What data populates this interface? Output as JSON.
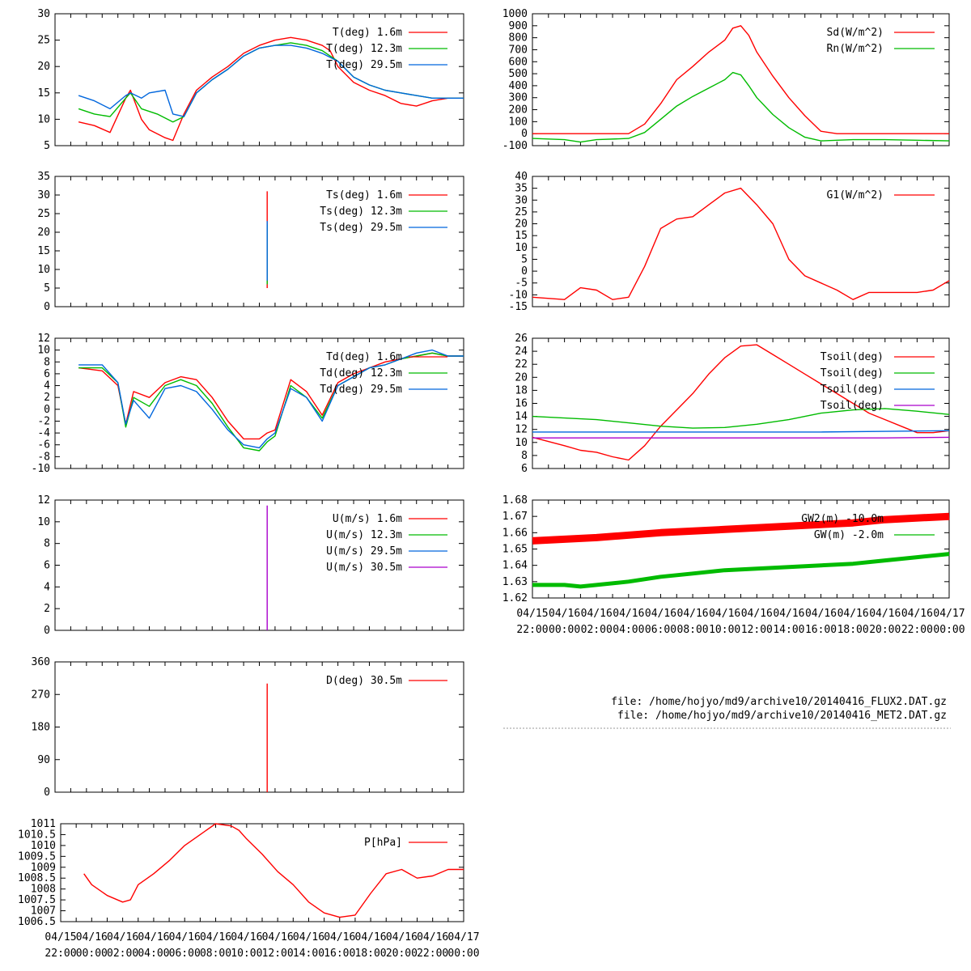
{
  "files": {
    "line1": "file: /home/hojyo/md9/archive10/20140416_FLUX2.DAT.gz",
    "line2": "file: /home/hojyo/md9/archive10/20140416_MET2.DAT.gz"
  },
  "time_axis": {
    "ticks_top": [
      "04/15",
      "04/16",
      "04/16",
      "04/16",
      "04/16",
      "04/16",
      "04/16",
      "04/16",
      "04/16",
      "04/16",
      "04/16",
      "04/16",
      "04/16",
      "04/17"
    ],
    "ticks_bottom": [
      "22:00",
      "00:00",
      "02:00",
      "04:00",
      "06:00",
      "08:00",
      "10:00",
      "12:00",
      "14:00",
      "16:00",
      "18:00",
      "20:00",
      "22:00",
      "00:00"
    ],
    "hours": [
      -2,
      0,
      2,
      4,
      6,
      8,
      10,
      12,
      14,
      16,
      18,
      20,
      22,
      24
    ]
  },
  "colors": {
    "red": "#ff0000",
    "green": "#00bb00",
    "blue": "#0066dd",
    "purple": "#aa00cc"
  },
  "chart_data": [
    {
      "id": "T",
      "type": "line",
      "ylim": [
        5,
        30
      ],
      "yticks": [
        "5",
        "10",
        "15",
        "20",
        "25",
        "30"
      ],
      "series": [
        {
          "name": "T(deg)  1.6m",
          "color": "red",
          "x": [
            -0.5,
            0.5,
            1.5,
            2.5,
            2.8,
            3.5,
            4.0,
            5.0,
            5.5,
            6.2,
            7.0,
            8.0,
            9.0,
            10.0,
            11.0,
            12.0,
            13.0,
            14.0,
            15.0,
            15.5,
            16.0,
            17.0,
            18.0,
            19.0,
            20.0,
            21.0,
            22.0,
            23.0,
            24.0
          ],
          "y": [
            9.5,
            8.8,
            7.5,
            14.0,
            15.5,
            10.0,
            8.0,
            6.5,
            6.0,
            11.0,
            15.5,
            18.0,
            20.0,
            22.5,
            24.0,
            25.0,
            25.5,
            25.0,
            24.0,
            23.0,
            20.0,
            17.0,
            15.5,
            14.5,
            13.0,
            12.5,
            13.5,
            14.0,
            14.0
          ]
        },
        {
          "name": "T(deg) 12.3m",
          "color": "green",
          "x": [
            -0.5,
            0.5,
            1.5,
            2.5,
            2.8,
            3.5,
            4.5,
            5.5,
            6.2,
            7.0,
            8.0,
            9.0,
            10.0,
            11.0,
            12.0,
            13.0,
            14.0,
            15.0,
            16.0,
            17.0,
            18.0,
            19.0,
            20.0,
            21.0,
            22.0,
            23.0,
            24.0
          ],
          "y": [
            12.0,
            11.0,
            10.5,
            14.0,
            15.0,
            12.0,
            11.0,
            9.5,
            10.5,
            15.0,
            17.5,
            19.5,
            22.0,
            23.5,
            24.0,
            24.5,
            24.0,
            23.0,
            21.0,
            18.0,
            16.5,
            15.5,
            15.0,
            14.5,
            14.0,
            14.0,
            14.0
          ]
        },
        {
          "name": "T(deg) 29.5m",
          "color": "blue",
          "x": [
            -0.5,
            0.5,
            1.5,
            2.5,
            2.8,
            3.5,
            4.0,
            5.0,
            5.5,
            6.2,
            7.0,
            8.0,
            9.0,
            10.0,
            11.0,
            12.0,
            13.0,
            14.0,
            15.0,
            16.0,
            17.0,
            18.0,
            19.0,
            20.0,
            21.0,
            22.0,
            23.0,
            24.0
          ],
          "y": [
            14.5,
            13.5,
            12.0,
            14.5,
            15.0,
            14.0,
            15.0,
            15.5,
            11.0,
            10.5,
            15.0,
            17.5,
            19.5,
            22.0,
            23.5,
            24.0,
            24.0,
            23.5,
            22.5,
            21.0,
            18.0,
            16.5,
            15.5,
            15.0,
            14.5,
            14.0,
            14.0,
            14.0
          ]
        }
      ]
    },
    {
      "id": "Ts",
      "type": "line",
      "ylim": [
        0,
        35
      ],
      "yticks": [
        "0",
        "5",
        "10",
        "15",
        "20",
        "25",
        "30",
        "35"
      ],
      "series": [
        {
          "name": "Ts(deg)  1.6m",
          "color": "red",
          "x": [
            11.5,
            11.5
          ],
          "y": [
            5,
            31
          ]
        },
        {
          "name": "Ts(deg) 12.3m",
          "color": "green",
          "x": [
            11.5,
            11.5
          ],
          "y": [
            6,
            22
          ]
        },
        {
          "name": "Ts(deg) 29.5m",
          "color": "blue",
          "x": [
            11.5,
            11.5
          ],
          "y": [
            7,
            23
          ]
        }
      ]
    },
    {
      "id": "Td",
      "type": "line",
      "ylim": [
        -10,
        12
      ],
      "yticks": [
        "-10",
        "-8",
        "-6",
        "-4",
        "-2",
        "0",
        "2",
        "4",
        "6",
        "8",
        "10",
        "12"
      ],
      "series": [
        {
          "name": "Td(deg)  1.6m",
          "color": "red",
          "x": [
            -0.5,
            1.0,
            2.0,
            2.5,
            3.0,
            4.0,
            5.0,
            6.0,
            7.0,
            8.0,
            9.0,
            10.0,
            11.0,
            11.5,
            12.0,
            13.0,
            14.0,
            15.0,
            16.0,
            17.0,
            18.0,
            19.0,
            20.0,
            21.0,
            22.0,
            23.0,
            24.0
          ],
          "y": [
            7.0,
            6.5,
            4.0,
            -2.5,
            3.0,
            2.0,
            4.5,
            5.5,
            5.0,
            2.0,
            -2.0,
            -5.0,
            -5.0,
            -4.0,
            -3.5,
            5.0,
            3.0,
            -1.0,
            4.5,
            6.0,
            7.0,
            8.0,
            8.5,
            9.0,
            9.5,
            9.0,
            9.0
          ]
        },
        {
          "name": "Td(deg) 12.3m",
          "color": "green",
          "x": [
            -0.5,
            1.0,
            2.0,
            2.5,
            3.0,
            4.0,
            5.0,
            6.0,
            7.0,
            8.0,
            9.0,
            10.0,
            11.0,
            11.5,
            12.0,
            13.0,
            14.0,
            15.0,
            16.0,
            17.0,
            18.0,
            19.0,
            20.0,
            21.0,
            22.0,
            23.0,
            24.0
          ],
          "y": [
            7.0,
            7.0,
            4.5,
            -3.0,
            2.0,
            0.5,
            4.0,
            5.0,
            4.0,
            1.0,
            -3.0,
            -6.5,
            -7.0,
            -5.5,
            -4.5,
            4.0,
            2.0,
            -1.5,
            4.0,
            5.5,
            7.0,
            7.5,
            8.5,
            9.0,
            9.5,
            9.0,
            9.0
          ]
        },
        {
          "name": "Td(deg) 29.5m",
          "color": "blue",
          "x": [
            -0.5,
            1.0,
            2.0,
            2.5,
            3.0,
            4.0,
            5.0,
            6.0,
            7.0,
            8.0,
            9.0,
            10.0,
            11.0,
            11.5,
            12.0,
            13.0,
            14.0,
            15.0,
            16.0,
            17.0,
            18.0,
            19.0,
            20.0,
            21.0,
            22.0,
            23.0,
            24.0
          ],
          "y": [
            7.5,
            7.5,
            4.5,
            -2.5,
            1.5,
            -1.5,
            3.5,
            4.0,
            3.0,
            0.0,
            -3.5,
            -6.0,
            -6.5,
            -5.0,
            -4.0,
            3.5,
            2.0,
            -2.0,
            4.0,
            5.5,
            7.0,
            7.5,
            8.5,
            9.5,
            10.0,
            9.0,
            9.0
          ]
        }
      ]
    },
    {
      "id": "U",
      "type": "line",
      "ylim": [
        0,
        12
      ],
      "yticks": [
        "0",
        "2",
        "4",
        "6",
        "8",
        "10",
        "12"
      ],
      "series": [
        {
          "name": "U(m/s)  1.6m",
          "color": "red",
          "x": [],
          "y": []
        },
        {
          "name": "U(m/s) 12.3m",
          "color": "green",
          "x": [],
          "y": []
        },
        {
          "name": "U(m/s) 29.5m",
          "color": "blue",
          "x": [],
          "y": []
        },
        {
          "name": "U(m/s) 30.5m",
          "color": "purple",
          "x": [
            11.5,
            11.5
          ],
          "y": [
            0,
            11.5
          ]
        }
      ]
    },
    {
      "id": "D",
      "type": "line",
      "ylim": [
        0,
        360
      ],
      "yticks": [
        "0",
        "90",
        "180",
        "270",
        "360"
      ],
      "series": [
        {
          "name": "D(deg)  30.5m",
          "color": "red",
          "x": [
            11.5,
            11.5
          ],
          "y": [
            0,
            300
          ]
        }
      ]
    },
    {
      "id": "P",
      "type": "line",
      "ylim": [
        1006.5,
        1011
      ],
      "yticks": [
        "1006.5",
        "1007",
        "1007.5",
        "1008",
        "1008.5",
        "1009",
        "1009.5",
        "1010",
        "1010.5",
        "1011"
      ],
      "series": [
        {
          "name": "P[hPa]",
          "color": "red",
          "x": [
            -0.5,
            0.0,
            1.0,
            2.0,
            2.5,
            3.0,
            4.0,
            5.0,
            6.0,
            7.0,
            8.0,
            9.0,
            9.5,
            10.0,
            11.0,
            12.0,
            13.0,
            14.0,
            15.0,
            16.0,
            17.0,
            18.0,
            19.0,
            20.0,
            21.0,
            22.0,
            23.0,
            24.0
          ],
          "y": [
            1008.7,
            1008.2,
            1007.7,
            1007.4,
            1007.5,
            1008.2,
            1008.7,
            1009.3,
            1010.0,
            1010.5,
            1011.0,
            1010.9,
            1010.7,
            1010.3,
            1009.6,
            1008.8,
            1008.2,
            1007.4,
            1006.9,
            1006.7,
            1006.8,
            1007.8,
            1008.7,
            1008.9,
            1008.5,
            1008.6,
            1008.9,
            1008.9
          ]
        }
      ]
    },
    {
      "id": "Sd",
      "type": "line",
      "ylim": [
        -100,
        1000
      ],
      "yticks": [
        "-100",
        "0",
        "100",
        "200",
        "300",
        "400",
        "500",
        "600",
        "700",
        "800",
        "900",
        "1000"
      ],
      "series": [
        {
          "name": "Sd(W/m^2)",
          "color": "red",
          "x": [
            -2.0,
            1.0,
            3.0,
            4.0,
            5.0,
            6.0,
            7.0,
            8.0,
            9.0,
            10.0,
            10.5,
            11.0,
            11.5,
            12.0,
            13.0,
            14.0,
            15.0,
            16.0,
            17.0,
            18.0,
            24.0
          ],
          "y": [
            0,
            0,
            0,
            0,
            80,
            250,
            450,
            560,
            680,
            780,
            880,
            900,
            820,
            680,
            480,
            300,
            150,
            20,
            0,
            0,
            0
          ]
        },
        {
          "name": "Rn(W/m^2)",
          "color": "green",
          "x": [
            -2.0,
            0.0,
            1.0,
            2.0,
            4.0,
            5.0,
            6.0,
            7.0,
            8.0,
            9.0,
            10.0,
            10.5,
            11.0,
            11.5,
            12.0,
            13.0,
            14.0,
            15.0,
            16.0,
            17.0,
            18.0,
            20.0,
            22.0,
            24.0
          ],
          "y": [
            -40,
            -50,
            -70,
            -50,
            -40,
            10,
            120,
            230,
            310,
            380,
            450,
            510,
            490,
            400,
            300,
            160,
            50,
            -30,
            -60,
            -55,
            -50,
            -50,
            -55,
            -60
          ]
        }
      ]
    },
    {
      "id": "G1",
      "type": "line",
      "ylim": [
        -15,
        40
      ],
      "yticks": [
        "-15",
        "-10",
        "-5",
        "0",
        "5",
        "10",
        "15",
        "20",
        "25",
        "30",
        "35",
        "40"
      ],
      "series": [
        {
          "name": "G1(W/m^2)",
          "color": "red",
          "x": [
            -2.0,
            0.0,
            1.0,
            2.0,
            3.0,
            4.0,
            5.0,
            6.0,
            7.0,
            8.0,
            9.0,
            10.0,
            11.0,
            12.0,
            13.0,
            14.0,
            15.0,
            16.0,
            17.0,
            18.0,
            19.0,
            20.0,
            21.0,
            22.0,
            23.0,
            24.0
          ],
          "y": [
            -11,
            -12,
            -7,
            -8,
            -12,
            -11,
            2,
            18,
            22,
            23,
            28,
            33,
            35,
            28,
            20,
            5,
            -2,
            -5,
            -8,
            -12,
            -9,
            -9,
            -9,
            -9,
            -8,
            -4
          ]
        }
      ]
    },
    {
      "id": "Tsoil",
      "type": "line",
      "ylim": [
        6,
        26
      ],
      "yticks": [
        "6",
        "8",
        "10",
        "12",
        "14",
        "16",
        "18",
        "20",
        "22",
        "24",
        "26"
      ],
      "series": [
        {
          "name": "Tsoil(deg)",
          "color": "red",
          "x": [
            -2.0,
            0.0,
            1.0,
            2.0,
            3.0,
            4.0,
            5.0,
            6.0,
            7.0,
            8.0,
            9.0,
            10.0,
            11.0,
            12.0,
            13.0,
            14.0,
            15.0,
            16.0,
            17.0,
            18.0,
            19.0,
            20.0,
            21.0,
            22.0,
            23.0,
            24.0
          ],
          "y": [
            10.8,
            9.5,
            8.8,
            8.5,
            7.8,
            7.3,
            9.5,
            12.5,
            15.0,
            17.5,
            20.5,
            23.0,
            24.8,
            25.0,
            23.5,
            22.0,
            20.5,
            19.0,
            17.5,
            16.0,
            14.5,
            13.5,
            12.5,
            11.5,
            11.5,
            11.8
          ]
        },
        {
          "name": "Tsoil(deg)",
          "color": "green",
          "x": [
            -2.0,
            2.0,
            4.0,
            6.0,
            8.0,
            10.0,
            12.0,
            14.0,
            16.0,
            18.0,
            20.0,
            22.0,
            24.0
          ],
          "y": [
            14.0,
            13.5,
            13.0,
            12.5,
            12.2,
            12.3,
            12.8,
            13.5,
            14.5,
            15.0,
            15.2,
            14.8,
            14.3
          ]
        },
        {
          "name": "Tsoil(deg)",
          "color": "blue",
          "x": [
            -2.0,
            4.0,
            8.0,
            12.0,
            16.0,
            20.0,
            24.0
          ],
          "y": [
            11.6,
            11.6,
            11.6,
            11.6,
            11.6,
            11.7,
            11.8
          ]
        },
        {
          "name": "Tsoil(deg)",
          "color": "purple",
          "x": [
            -2.0,
            4.0,
            8.0,
            12.0,
            16.0,
            20.0,
            24.0
          ],
          "y": [
            10.7,
            10.7,
            10.7,
            10.7,
            10.7,
            10.7,
            10.8
          ]
        }
      ]
    },
    {
      "id": "GW",
      "type": "line",
      "ylim": [
        1.62,
        1.68
      ],
      "yticks": [
        "1.62",
        "1.63",
        "1.64",
        "1.65",
        "1.66",
        "1.67",
        "1.68"
      ],
      "series": [
        {
          "name": "GW2(m) -10.0m",
          "color": "red",
          "x": [
            -2.0,
            2.0,
            6.0,
            10.0,
            14.0,
            18.0,
            20.0,
            24.0
          ],
          "y": [
            1.655,
            1.657,
            1.66,
            1.662,
            1.664,
            1.666,
            1.668,
            1.67
          ]
        },
        {
          "name": "GW(m) -2.0m",
          "color": "green",
          "x": [
            -2.0,
            0.0,
            1.0,
            2.0,
            4.0,
            6.0,
            8.0,
            10.0,
            12.0,
            14.0,
            16.0,
            18.0,
            20.0,
            22.0,
            24.0
          ],
          "y": [
            1.628,
            1.628,
            1.627,
            1.628,
            1.63,
            1.633,
            1.635,
            1.637,
            1.638,
            1.639,
            1.64,
            1.641,
            1.643,
            1.645,
            1.647
          ]
        }
      ]
    }
  ]
}
